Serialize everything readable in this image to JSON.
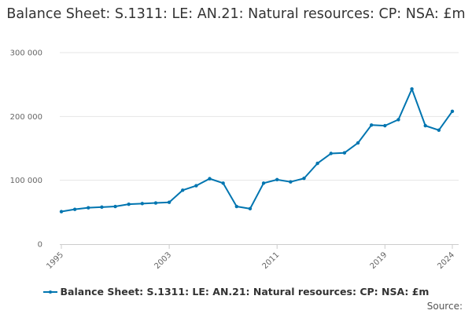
{
  "chart_data": {
    "type": "line",
    "title": "Balance Sheet: S.1311: LE: AN.21: Natural resources: CP: NSA: £m",
    "xlabel": "",
    "ylabel": "",
    "x": [
      1995,
      1996,
      1997,
      1998,
      1999,
      2000,
      2001,
      2002,
      2003,
      2004,
      2005,
      2006,
      2007,
      2008,
      2009,
      2010,
      2011,
      2012,
      2013,
      2014,
      2015,
      2016,
      2017,
      2018,
      2019,
      2020,
      2021,
      2022,
      2023,
      2024
    ],
    "series": [
      {
        "name": "Balance Sheet: S.1311: LE: AN.21: Natural resources: CP: NSA: £m",
        "color": "#0075b0",
        "values": [
          51000,
          54500,
          57000,
          58000,
          59000,
          62500,
          63500,
          64500,
          65500,
          84500,
          91500,
          102500,
          95500,
          59000,
          55500,
          95500,
          101000,
          97500,
          103000,
          126500,
          142000,
          143000,
          158500,
          186500,
          185500,
          195000,
          243000,
          185500,
          178500,
          208000
        ]
      }
    ],
    "ylim": [
      0,
      300000
    ],
    "yticks": [
      0,
      100000,
      200000,
      300000
    ],
    "ytick_labels": [
      "0",
      "100 000",
      "200 000",
      "300 000"
    ],
    "xticks": [
      1995,
      2003,
      2011,
      2019,
      2024
    ],
    "xtick_labels": [
      "1995",
      "2003",
      "2011",
      "2019",
      "2024"
    ],
    "grid": true,
    "legend": "bottom"
  },
  "footer": {
    "source_label": "Source:"
  }
}
